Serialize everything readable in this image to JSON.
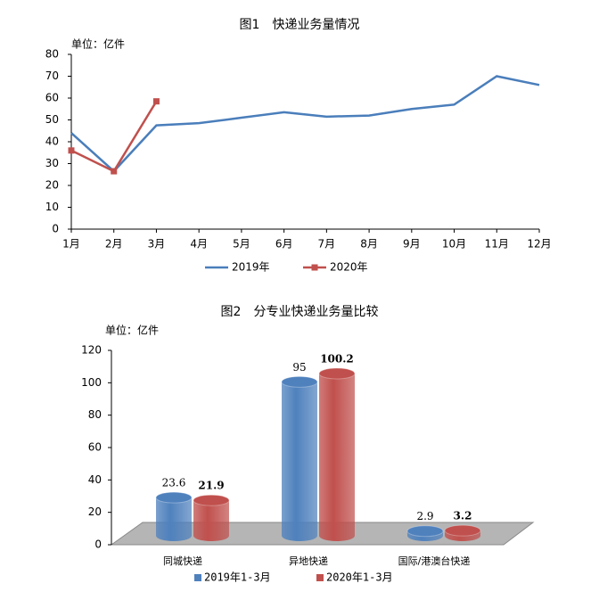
{
  "chart_data": [
    {
      "type": "line",
      "title": "图1　快递业务量情况",
      "unit_label": "单位：亿件",
      "categories": [
        "1月",
        "2月",
        "3月",
        "4月",
        "5月",
        "6月",
        "7月",
        "8月",
        "9月",
        "10月",
        "11月",
        "12月"
      ],
      "series": [
        {
          "name": "2019年",
          "color": "#4a7ebb",
          "values": [
            44,
            26.5,
            47.5,
            48.5,
            51,
            53.5,
            51.5,
            52,
            55,
            57,
            70,
            66
          ]
        },
        {
          "name": "2020年",
          "color": "#c0504d",
          "values": [
            36,
            26.5,
            58.5,
            null,
            null,
            null,
            null,
            null,
            null,
            null,
            null,
            null
          ]
        }
      ],
      "ylim": [
        0,
        80
      ],
      "yticks": [
        0,
        10,
        20,
        30,
        40,
        50,
        60,
        70,
        80
      ]
    },
    {
      "type": "bar",
      "title": "图2　分专业快递业务量比较",
      "unit_label": "单位：亿件",
      "categories": [
        "同城快递",
        "异地快递",
        "国际/港澳台快递"
      ],
      "series": [
        {
          "name": "2019年1-3月",
          "color": "#4f81bd",
          "values": [
            23.6,
            95,
            2.9
          ]
        },
        {
          "name": "2020年1-3月",
          "color": "#c0504d",
          "values": [
            21.9,
            100.2,
            3.2
          ]
        }
      ],
      "ylim": [
        0,
        120
      ],
      "yticks": [
        0,
        20,
        40,
        60,
        80,
        100,
        120
      ]
    }
  ]
}
